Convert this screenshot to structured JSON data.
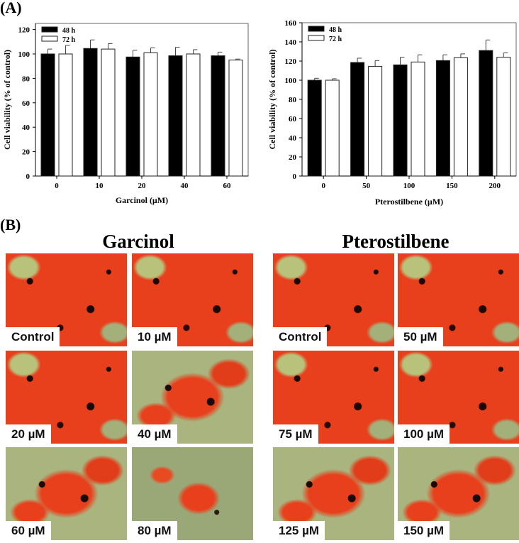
{
  "panel_a_label": "(A)",
  "panel_b_label": "(B)",
  "chart_data": [
    {
      "type": "bar",
      "title": "",
      "xlabel": "Garcinol (µM)",
      "ylabel": "Cell viability (% of control)",
      "categories": [
        "0",
        "10",
        "20",
        "40",
        "60"
      ],
      "ylim": [
        0,
        125
      ],
      "yticks": [
        0,
        20,
        40,
        60,
        80,
        100,
        120
      ],
      "grid": false,
      "legend_placement": "top-left",
      "series": [
        {
          "name": "48 h",
          "color": "#000000",
          "values": [
            100,
            104.5,
            97.5,
            98.5,
            98.5
          ],
          "errors": [
            4,
            7,
            5.5,
            7,
            3
          ]
        },
        {
          "name": "72 h",
          "color": "#ffffff",
          "values": [
            100,
            104,
            101,
            100,
            95
          ],
          "errors": [
            7,
            4.5,
            4,
            3.5,
            0.8
          ]
        }
      ]
    },
    {
      "type": "bar",
      "title": "",
      "xlabel": "Pterostilbene (µM)",
      "ylabel": "Cell viability (% of control)",
      "categories": [
        "0",
        "50",
        "100",
        "150",
        "200"
      ],
      "ylim": [
        0,
        160
      ],
      "yticks": [
        0,
        20,
        40,
        60,
        80,
        100,
        120,
        140,
        160
      ],
      "grid": false,
      "legend_placement": "top-left",
      "series": [
        {
          "name": "48 h",
          "color": "#000000",
          "values": [
            100,
            118.5,
            116,
            120.5,
            131
          ],
          "errors": [
            2,
            4.5,
            8,
            6,
            11
          ]
        },
        {
          "name": "72 h",
          "color": "#ffffff",
          "values": [
            100,
            114.5,
            119,
            123.5,
            124
          ],
          "errors": [
            1.5,
            6,
            7.5,
            4,
            4.5
          ]
        }
      ]
    }
  ],
  "micrographs": {
    "garcinol": {
      "title": "Garcinol",
      "tiles": [
        {
          "label": "Control",
          "stain": "red"
        },
        {
          "label": "10 µM",
          "stain": "red"
        },
        {
          "label": "20 µM",
          "stain": "red"
        },
        {
          "label": "40 µM",
          "stain": "mixed"
        },
        {
          "label": "60 µM",
          "stain": "mixed"
        },
        {
          "label": "80 µM",
          "stain": "green"
        }
      ]
    },
    "pterostilbene": {
      "title": "Pterostilbene",
      "tiles": [
        {
          "label": "Control",
          "stain": "red"
        },
        {
          "label": "50 µM",
          "stain": "red"
        },
        {
          "label": "75 µM",
          "stain": "red"
        },
        {
          "label": "100 µM",
          "stain": "red"
        },
        {
          "label": "125 µM",
          "stain": "mixed"
        },
        {
          "label": "150 µM",
          "stain": "mixed"
        }
      ]
    }
  }
}
